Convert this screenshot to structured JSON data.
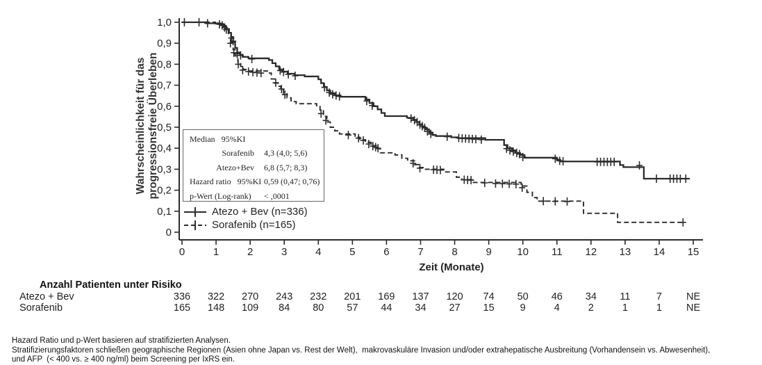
{
  "figure": {
    "ylabel_line1": "Wahrscheinlichkeit für das",
    "ylabel_line2": "progressionsfreie Überleben",
    "xlabel": "Zeit (Monate)"
  },
  "stats_box": {
    "rows": [
      {
        "label": "Median   95%KI",
        "value": "",
        "indent": false
      },
      {
        "label": "Sorafenib",
        "value": "4,3 (4,0; 5,6)",
        "indent": true
      },
      {
        "label": "Atezo+Bev",
        "value": "6,8 (5,7; 8,3)",
        "indent": true
      },
      {
        "label": "Hazard ratio   95%KI",
        "value": "0,59 (0,47; 0,76)",
        "indent": false
      },
      {
        "label": "p-Wert (Log-rank)",
        "value": "< ,0001",
        "indent": false
      }
    ]
  },
  "legend": [
    {
      "label": "Atezo + Bev (n=336)",
      "line": "solid"
    },
    {
      "label": "Sorafenib (n=165)",
      "line": "dashed"
    }
  ],
  "risk_table": {
    "title": "Anzahl Patienten unter Risiko",
    "rows": [
      {
        "label": "Atezo + Bev",
        "counts": [
          "336",
          "322",
          "270",
          "243",
          "232",
          "201",
          "169",
          "137",
          "120",
          "74",
          "50",
          "46",
          "34",
          "11",
          "7",
          "NE"
        ]
      },
      {
        "label": "Sorafenib",
        "counts": [
          "165",
          "148",
          "109",
          "84",
          "80",
          "57",
          "44",
          "34",
          "27",
          "15",
          "9",
          "4",
          "2",
          "1",
          "1",
          "NE"
        ]
      }
    ]
  },
  "footnotes": [
    "Hazard Ratio und p-Wert basieren auf stratifizierten Analysen.",
    "Stratifizierungsfaktoren schließen geographische Regionen (Asien ohne Japan vs. Rest der Welt),  makrovaskuläre Invasion und/oder extrahepatische Ausbreitung (Vorhandensein vs. Abwesenheit),",
    "und AFP  (< 400 vs. ≥ 400 ng/ml) beim Screening per IxRS ein."
  ],
  "chart_data": {
    "type": "line",
    "subtype": "kaplan-meier-step",
    "title": "",
    "xlabel": "Zeit (Monate)",
    "ylabel": "Wahrscheinlichkeit für das progressionsfreie Überleben",
    "xlim": [
      0,
      15
    ],
    "ylim": [
      0,
      1.0
    ],
    "grid": false,
    "xticks": [
      "0",
      "1",
      "2",
      "3",
      "4",
      "5",
      "6",
      "7",
      "8",
      "9",
      "10",
      "11",
      "12",
      "13",
      "14",
      "15"
    ],
    "ytick_values": [
      1.0,
      0.9,
      0.8,
      0.7,
      0.6,
      0.5,
      0.4,
      0.3,
      0.2,
      0.1,
      0
    ],
    "ytick_labels": [
      "1,0",
      "0,9",
      "0,8",
      "0,7",
      "0,6",
      "0,5",
      "0,4",
      "0,3",
      "0,2",
      "0,1",
      "0"
    ],
    "line_color": "#2b2b2b",
    "series": [
      {
        "name": "Atezo + Bev (n=336)",
        "line": "solid",
        "median": "6,8 (5,7; 8,3)",
        "steps": [
          [
            0,
            1.0
          ],
          [
            0.72,
            0.995
          ],
          [
            1.12,
            0.99
          ],
          [
            1.22,
            0.98
          ],
          [
            1.3,
            0.968
          ],
          [
            1.38,
            0.95
          ],
          [
            1.44,
            0.93
          ],
          [
            1.5,
            0.905
          ],
          [
            1.56,
            0.878
          ],
          [
            1.62,
            0.856
          ],
          [
            1.7,
            0.845
          ],
          [
            1.78,
            0.835
          ],
          [
            1.95,
            0.828
          ],
          [
            2.55,
            0.82
          ],
          [
            2.65,
            0.805
          ],
          [
            2.75,
            0.79
          ],
          [
            2.85,
            0.775
          ],
          [
            2.95,
            0.765
          ],
          [
            3.1,
            0.755
          ],
          [
            3.3,
            0.748
          ],
          [
            3.6,
            0.742
          ],
          [
            4.0,
            0.728
          ],
          [
            4.08,
            0.71
          ],
          [
            4.16,
            0.692
          ],
          [
            4.25,
            0.675
          ],
          [
            4.35,
            0.662
          ],
          [
            4.5,
            0.652
          ],
          [
            4.65,
            0.645
          ],
          [
            5.38,
            0.632
          ],
          [
            5.5,
            0.615
          ],
          [
            5.62,
            0.6
          ],
          [
            5.74,
            0.585
          ],
          [
            5.85,
            0.568
          ],
          [
            5.95,
            0.553
          ],
          [
            6.6,
            0.545
          ],
          [
            6.78,
            0.535
          ],
          [
            6.88,
            0.525
          ],
          [
            6.96,
            0.513
          ],
          [
            7.05,
            0.5
          ],
          [
            7.15,
            0.49
          ],
          [
            7.25,
            0.475
          ],
          [
            7.35,
            0.463
          ],
          [
            7.45,
            0.458
          ],
          [
            7.9,
            0.452
          ],
          [
            8.1,
            0.448
          ],
          [
            8.9,
            0.44
          ],
          [
            9.45,
            0.415
          ],
          [
            9.55,
            0.4
          ],
          [
            9.68,
            0.39
          ],
          [
            9.8,
            0.378
          ],
          [
            9.92,
            0.368
          ],
          [
            10.05,
            0.355
          ],
          [
            11.0,
            0.345
          ],
          [
            11.1,
            0.337
          ],
          [
            12.85,
            0.32
          ],
          [
            12.95,
            0.31
          ],
          [
            13.55,
            0.255
          ],
          [
            14.9,
            0.255
          ]
        ],
        "censors": [
          [
            0.07,
            1.0
          ],
          [
            0.5,
            1.0
          ],
          [
            0.75,
            0.995
          ],
          [
            1.1,
            0.99
          ],
          [
            1.18,
            0.985
          ],
          [
            1.25,
            0.975
          ],
          [
            1.3,
            0.965
          ],
          [
            1.45,
            0.925
          ],
          [
            1.5,
            0.91
          ],
          [
            1.62,
            0.85
          ],
          [
            1.72,
            0.842
          ],
          [
            2.05,
            0.825
          ],
          [
            2.88,
            0.77
          ],
          [
            2.98,
            0.763
          ],
          [
            3.12,
            0.752
          ],
          [
            3.32,
            0.745
          ],
          [
            4.18,
            0.69
          ],
          [
            4.32,
            0.665
          ],
          [
            4.42,
            0.657
          ],
          [
            4.52,
            0.651
          ],
          [
            4.62,
            0.647
          ],
          [
            5.42,
            0.625
          ],
          [
            5.58,
            0.603
          ],
          [
            6.72,
            0.542
          ],
          [
            6.82,
            0.533
          ],
          [
            6.9,
            0.525
          ],
          [
            6.98,
            0.512
          ],
          [
            7.05,
            0.505
          ],
          [
            7.12,
            0.497
          ],
          [
            7.2,
            0.48
          ],
          [
            7.3,
            0.468
          ],
          [
            7.78,
            0.455
          ],
          [
            8.12,
            0.449
          ],
          [
            8.22,
            0.447
          ],
          [
            8.32,
            0.446
          ],
          [
            8.42,
            0.445
          ],
          [
            8.52,
            0.444
          ],
          [
            8.62,
            0.443
          ],
          [
            8.78,
            0.441
          ],
          [
            9.52,
            0.398
          ],
          [
            9.62,
            0.39
          ],
          [
            9.72,
            0.384
          ],
          [
            9.82,
            0.377
          ],
          [
            9.9,
            0.372
          ],
          [
            10.0,
            0.358
          ],
          [
            10.95,
            0.35
          ],
          [
            11.08,
            0.34
          ],
          [
            11.18,
            0.338
          ],
          [
            12.18,
            0.335
          ],
          [
            12.28,
            0.335
          ],
          [
            12.38,
            0.335
          ],
          [
            12.48,
            0.335
          ],
          [
            12.58,
            0.335
          ],
          [
            12.68,
            0.335
          ],
          [
            13.42,
            0.318
          ],
          [
            13.92,
            0.255
          ],
          [
            14.32,
            0.255
          ],
          [
            14.42,
            0.255
          ],
          [
            14.52,
            0.255
          ],
          [
            14.62,
            0.255
          ],
          [
            14.78,
            0.255
          ]
        ]
      },
      {
        "name": "Sorafenib (n=165)",
        "line": "dashed",
        "median": "4,3 (4,0; 5,6)",
        "steps": [
          [
            0,
            1.0
          ],
          [
            0.98,
            0.993
          ],
          [
            1.2,
            0.985
          ],
          [
            1.28,
            0.968
          ],
          [
            1.36,
            0.94
          ],
          [
            1.44,
            0.905
          ],
          [
            1.5,
            0.87
          ],
          [
            1.56,
            0.84
          ],
          [
            1.64,
            0.81
          ],
          [
            1.72,
            0.79
          ],
          [
            1.8,
            0.775
          ],
          [
            1.92,
            0.768
          ],
          [
            2.5,
            0.758
          ],
          [
            2.62,
            0.73
          ],
          [
            2.72,
            0.71
          ],
          [
            2.82,
            0.695
          ],
          [
            2.9,
            0.678
          ],
          [
            2.98,
            0.66
          ],
          [
            3.08,
            0.64
          ],
          [
            3.2,
            0.622
          ],
          [
            3.35,
            0.612
          ],
          [
            3.95,
            0.602
          ],
          [
            4.05,
            0.578
          ],
          [
            4.15,
            0.552
          ],
          [
            4.25,
            0.525
          ],
          [
            4.35,
            0.5
          ],
          [
            4.48,
            0.483
          ],
          [
            4.62,
            0.468
          ],
          [
            5.08,
            0.452
          ],
          [
            5.22,
            0.44
          ],
          [
            5.38,
            0.428
          ],
          [
            5.55,
            0.412
          ],
          [
            5.7,
            0.398
          ],
          [
            5.82,
            0.378
          ],
          [
            6.25,
            0.368
          ],
          [
            6.45,
            0.352
          ],
          [
            6.62,
            0.34
          ],
          [
            6.82,
            0.322
          ],
          [
            6.95,
            0.308
          ],
          [
            7.1,
            0.3
          ],
          [
            7.68,
            0.287
          ],
          [
            8.05,
            0.262
          ],
          [
            8.2,
            0.25
          ],
          [
            8.55,
            0.237
          ],
          [
            9.95,
            0.22
          ],
          [
            10.12,
            0.19
          ],
          [
            10.28,
            0.165
          ],
          [
            10.42,
            0.148
          ],
          [
            11.78,
            0.09
          ],
          [
            12.78,
            0.047
          ],
          [
            14.75,
            0.047
          ]
        ],
        "censors": [
          [
            1.42,
            0.9
          ],
          [
            1.52,
            0.855
          ],
          [
            1.65,
            0.8
          ],
          [
            1.78,
            0.772
          ],
          [
            1.95,
            0.765
          ],
          [
            2.08,
            0.762
          ],
          [
            2.2,
            0.76
          ],
          [
            2.32,
            0.758
          ],
          [
            2.75,
            0.712
          ],
          [
            2.92,
            0.682
          ],
          [
            3.02,
            0.655
          ],
          [
            4.08,
            0.565
          ],
          [
            4.22,
            0.532
          ],
          [
            4.88,
            0.463
          ],
          [
            5.18,
            0.448
          ],
          [
            5.32,
            0.437
          ],
          [
            5.48,
            0.42
          ],
          [
            5.6,
            0.41
          ],
          [
            5.68,
            0.405
          ],
          [
            5.75,
            0.4
          ],
          [
            6.78,
            0.328
          ],
          [
            6.98,
            0.305
          ],
          [
            7.38,
            0.298
          ],
          [
            7.48,
            0.297
          ],
          [
            7.58,
            0.296
          ],
          [
            8.28,
            0.25
          ],
          [
            8.38,
            0.249
          ],
          [
            8.48,
            0.248
          ],
          [
            8.88,
            0.235
          ],
          [
            9.2,
            0.232
          ],
          [
            9.4,
            0.231
          ],
          [
            9.6,
            0.23
          ],
          [
            9.8,
            0.229
          ],
          [
            9.98,
            0.212
          ],
          [
            10.6,
            0.148
          ],
          [
            10.95,
            0.147
          ],
          [
            11.3,
            0.146
          ],
          [
            14.7,
            0.047
          ]
        ]
      }
    ],
    "legend_position": "inside-lower-left",
    "annotations": {
      "hazard_ratio": "0,59 (0,47; 0,76)",
      "p_value": "< ,0001"
    }
  }
}
